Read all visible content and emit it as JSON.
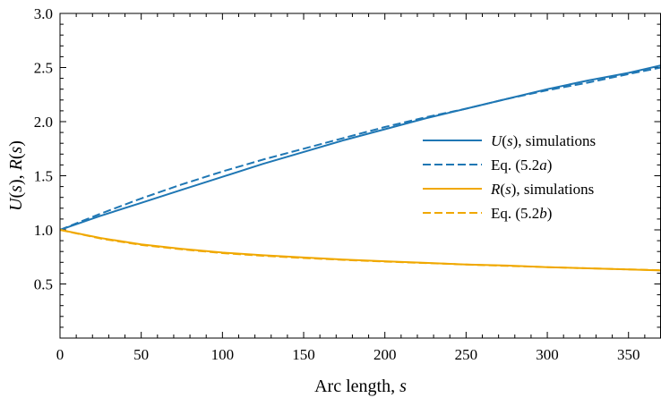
{
  "chart_data": {
    "type": "line",
    "xlabel": {
      "main": "Arc length, ",
      "italic": "s"
    },
    "ylabel": {
      "p1": "U",
      "p2": "(",
      "p3": "s",
      "p4": "), ",
      "p5": "R",
      "p6": "(",
      "p7": "s",
      "p8": ")"
    },
    "xlim": [
      0,
      370
    ],
    "ylim": [
      0,
      3.0
    ],
    "xticks": [
      0,
      50,
      100,
      150,
      200,
      250,
      300,
      350
    ],
    "xtick_labels": [
      "0",
      "50",
      "100",
      "150",
      "200",
      "250",
      "300",
      "350"
    ],
    "yticks": [
      0.5,
      1.0,
      1.5,
      2.0,
      2.5,
      3.0
    ],
    "ytick_labels": [
      "0.5",
      "1.0",
      "1.5",
      "2.0",
      "2.5",
      "3.0"
    ],
    "legend_position": "center-right",
    "series": [
      {
        "key": "u_sim",
        "legend": {
          "italic": "U",
          "rest1": "(",
          "italic2": "s",
          "rest2": "), simulations"
        },
        "color": "#1f77b4",
        "style": "solid",
        "x": [
          0,
          25,
          50,
          75,
          100,
          125,
          150,
          175,
          200,
          225,
          250,
          275,
          300,
          325,
          350,
          370
        ],
        "y": [
          1.0,
          1.13,
          1.25,
          1.37,
          1.49,
          1.61,
          1.72,
          1.83,
          1.93,
          2.03,
          2.12,
          2.21,
          2.3,
          2.38,
          2.45,
          2.52
        ]
      },
      {
        "key": "u_eq",
        "legend": {
          "rest1": "Eq. (5.2",
          "italic": "a",
          "rest2": ")"
        },
        "color": "#1f77b4",
        "style": "dashed",
        "x": [
          0,
          25,
          50,
          75,
          100,
          125,
          150,
          175,
          200,
          225,
          250,
          275,
          300,
          325,
          350,
          370
        ],
        "y": [
          1.0,
          1.15,
          1.29,
          1.42,
          1.54,
          1.65,
          1.75,
          1.85,
          1.95,
          2.04,
          2.12,
          2.21,
          2.29,
          2.36,
          2.44,
          2.5
        ]
      },
      {
        "key": "r_sim",
        "legend": {
          "italic": "R",
          "rest1": "(",
          "italic2": "s",
          "rest2": "), simulations"
        },
        "color": "#f0a800",
        "style": "solid",
        "x": [
          0,
          25,
          50,
          75,
          100,
          125,
          150,
          175,
          200,
          225,
          250,
          275,
          300,
          325,
          350,
          370
        ],
        "y": [
          1.0,
          0.925,
          0.865,
          0.825,
          0.79,
          0.765,
          0.745,
          0.725,
          0.71,
          0.695,
          0.68,
          0.67,
          0.655,
          0.645,
          0.635,
          0.625
        ]
      },
      {
        "key": "r_eq",
        "legend": {
          "rest1": "Eq. (5.2",
          "italic": "b",
          "rest2": ")"
        },
        "color": "#f0a800",
        "style": "dashed",
        "x": [
          0,
          25,
          50,
          75,
          100,
          125,
          150,
          175,
          200,
          225,
          250,
          275,
          300,
          325,
          350,
          370
        ],
        "y": [
          1.0,
          0.92,
          0.86,
          0.82,
          0.785,
          0.76,
          0.74,
          0.722,
          0.707,
          0.693,
          0.679,
          0.667,
          0.655,
          0.645,
          0.635,
          0.627
        ]
      }
    ]
  }
}
